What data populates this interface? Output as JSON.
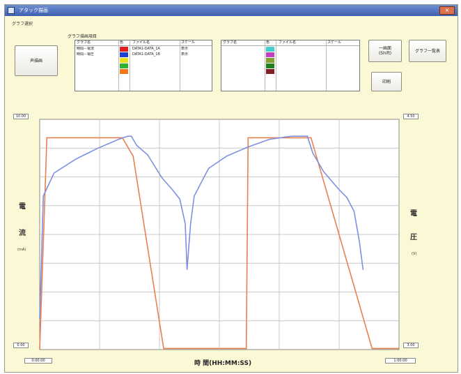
{
  "window": {
    "title": "アタック描画",
    "close_symbol": "×"
  },
  "menu": {
    "label": "グラフ選択"
  },
  "controls": {
    "left_button": "声描画",
    "group_label": "グラフ描画項目",
    "top_right_button_1": "一画面\n(Shift)",
    "top_right_button_2": "グラフ一覧表",
    "middle_right_button": "印刷"
  },
  "series_table_left": {
    "headers": [
      "グラフ名",
      "色",
      "ファイル名",
      "スケール"
    ],
    "rows": [
      {
        "name": "時間－電流",
        "color": "#e02020",
        "file": "DATA1-DATA_1A",
        "scale": "表示"
      },
      {
        "name": "時間－電圧",
        "color": "#2040d0",
        "file": "DATA1-DATA_1B",
        "scale": "表示"
      },
      {
        "name": "",
        "color": "#e8e020",
        "file": "",
        "scale": ""
      },
      {
        "name": "",
        "color": "#30b030",
        "file": "",
        "scale": ""
      },
      {
        "name": "",
        "color": "#f07818",
        "file": "",
        "scale": ""
      }
    ]
  },
  "series_table_right": {
    "headers": [
      "グラフ名",
      "色",
      "ファイル名",
      "スケール"
    ],
    "rows": [
      {
        "color": "#40d0d0"
      },
      {
        "color": "#c040c0"
      },
      {
        "color": "#80a030"
      },
      {
        "color": "#208020"
      },
      {
        "color": "#802020"
      }
    ]
  },
  "axes": {
    "left_top_value": "10.00",
    "left_bottom_value": "0.00",
    "right_top_value": "4.50",
    "right_bottom_value": "3.00",
    "x_left_value": "0:00:00",
    "x_right_value": "1:00:00",
    "left_label_chars": [
      "電",
      "流"
    ],
    "left_unit": "(mA)",
    "right_label_chars": [
      "電",
      "圧"
    ],
    "right_unit": "(V)",
    "x_label": "時 間(HH:MM:SS)"
  },
  "chart_data": {
    "type": "line",
    "title": "",
    "xlabel": "時 間(HH:MM:SS)",
    "ylabel_left": "電流 (mA)",
    "ylabel_right": "電圧 (V)",
    "y_left_range": [
      0,
      10
    ],
    "y_right_range": [
      3.0,
      4.5
    ],
    "grid": true,
    "series": [
      {
        "color": "#e88050",
        "x": [
          0.0,
          0.02,
          0.23,
          0.26,
          0.345,
          0.36,
          0.575,
          0.58,
          0.755,
          0.77,
          0.925,
          0.93,
          1.0
        ],
        "y": [
          0.0,
          9.2,
          9.2,
          8.4,
          0.05,
          0.05,
          0.05,
          9.2,
          9.2,
          8.4,
          0.05,
          0.05,
          0.05
        ]
      },
      {
        "color": "#7f8fe0",
        "x": [
          0.0,
          0.01,
          0.04,
          0.1,
          0.16,
          0.22,
          0.245,
          0.255,
          0.255,
          0.27,
          0.3,
          0.34,
          0.37,
          0.39,
          0.405,
          0.41,
          0.42,
          0.43,
          0.47,
          0.52,
          0.58,
          0.64,
          0.7,
          0.735,
          0.745,
          0.745,
          0.76,
          0.79,
          0.83,
          0.855,
          0.875,
          0.89,
          0.9
        ],
        "y": [
          3.2,
          4.0,
          4.15,
          4.24,
          4.31,
          4.37,
          4.39,
          4.39,
          4.39,
          4.33,
          4.27,
          4.12,
          4.04,
          3.98,
          3.82,
          3.52,
          3.82,
          4.0,
          4.18,
          4.26,
          4.32,
          4.37,
          4.39,
          4.39,
          4.39,
          4.39,
          4.28,
          4.16,
          4.05,
          3.99,
          3.9,
          3.7,
          3.52
        ]
      }
    ]
  }
}
